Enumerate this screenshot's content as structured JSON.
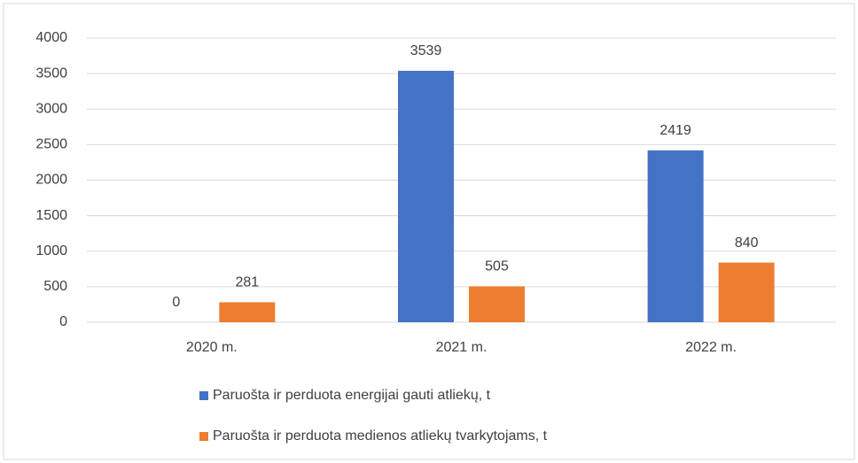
{
  "chart_data": {
    "type": "bar",
    "categories": [
      "2020 m.",
      "2021 m.",
      "2022 m."
    ],
    "series": [
      {
        "name": "Paruošta ir perduota energijai gauti atliekų, t",
        "color": "#4472c4",
        "values": [
          0,
          3539,
          2419
        ]
      },
      {
        "name": "Paruošta ir perduota medienos atliekų tvarkytojams, t",
        "color": "#ed7d31",
        "values": [
          281,
          505,
          840
        ]
      }
    ],
    "ylim": [
      0,
      4000
    ],
    "yticks": [
      0,
      500,
      1000,
      1500,
      2000,
      2500,
      3000,
      3500,
      4000
    ],
    "grid": true,
    "legend": "bottom"
  }
}
